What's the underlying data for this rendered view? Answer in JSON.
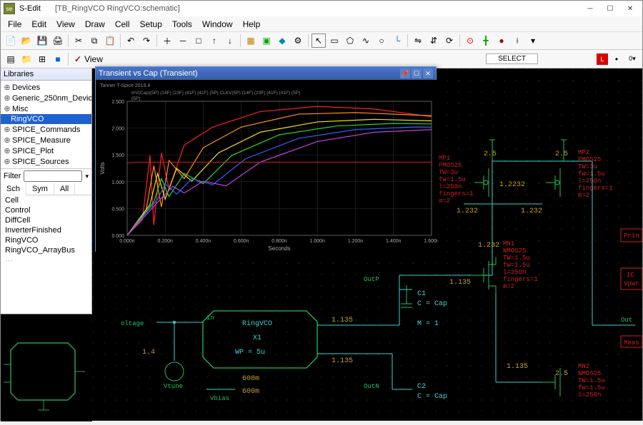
{
  "window": {
    "app": "S-Edit",
    "doc": "[TB_RingVCO RingVCO:schematic]"
  },
  "menus": [
    "File",
    "Edit",
    "View",
    "Draw",
    "Cell",
    "Setup",
    "Tools",
    "Window",
    "Help"
  ],
  "toolbar_select_label": "SELECT",
  "view_check": {
    "label": "View",
    "checked": true
  },
  "libraries": {
    "header": "Libraries",
    "items": [
      {
        "label": "Devices",
        "selected": false
      },
      {
        "label": "Generic_250nm_Devic",
        "selected": false
      },
      {
        "label": "Misc",
        "selected": false
      },
      {
        "label": "RingVCO",
        "selected": true
      },
      {
        "label": "SPICE_Commands",
        "selected": false
      },
      {
        "label": "SPICE_Measure",
        "selected": false
      },
      {
        "label": "SPICE_Plot",
        "selected": false
      },
      {
        "label": "SPICE_Sources",
        "selected": false
      }
    ]
  },
  "filter": {
    "label": "Filter",
    "value": ""
  },
  "cell_tabs": [
    "Sch",
    "Sym",
    "All"
  ],
  "cell_tab_active": 0,
  "cells": [
    "Cell",
    "Control",
    "DiffCell",
    "InverterFinished",
    "RingVCO",
    "RingVCO_ArrayBus"
  ],
  "plot": {
    "title": "Transient vs Cap (Transient)",
    "subtitle": "Tanner T-Spice 2019.4",
    "legend_bits": [
      "InV(Cap)(5P)",
      "(14F)",
      "(23F)",
      "(41F)",
      "(41F)",
      "(5P)",
      "CLKV(5P)",
      "(14F)",
      "(23F)",
      "(41F)",
      "(41F)",
      "(5P)"
    ],
    "x_label": "Seconds",
    "y_label": "Volts",
    "x_ticks": [
      "0.000n",
      "0.200n",
      "0.400n",
      "0.600n",
      "0.800n",
      "1.000n",
      "1.200n",
      "1.400n",
      "1.600n"
    ],
    "y_ticks": [
      "0.000",
      "0.500",
      "1.000",
      "1.500",
      "2.000",
      "2.500"
    ],
    "xlim": [
      0,
      1.6
    ],
    "ylim": [
      0,
      2.6
    ],
    "bg": "#000000",
    "grid_color": "#333333",
    "axis_color": "#888888",
    "tick_fontsize": 7,
    "series": [
      {
        "color": "#ff2020",
        "width": 1.2,
        "pts": [
          [
            0.0,
            0.0
          ],
          [
            0.08,
            0.3
          ],
          [
            0.12,
            1.55
          ],
          [
            0.14,
            0.2
          ],
          [
            0.18,
            1.6
          ],
          [
            0.22,
            0.9
          ],
          [
            0.3,
            1.75
          ],
          [
            0.45,
            2.1
          ],
          [
            0.7,
            2.4
          ],
          [
            1.0,
            2.5
          ],
          [
            1.3,
            2.45
          ],
          [
            1.6,
            2.3
          ]
        ]
      },
      {
        "color": "#ff9020",
        "width": 1.2,
        "pts": [
          [
            0.0,
            0.0
          ],
          [
            0.1,
            0.5
          ],
          [
            0.14,
            1.35
          ],
          [
            0.18,
            0.55
          ],
          [
            0.22,
            1.45
          ],
          [
            0.3,
            1.1
          ],
          [
            0.4,
            1.7
          ],
          [
            0.6,
            2.1
          ],
          [
            0.9,
            2.35
          ],
          [
            1.2,
            2.38
          ],
          [
            1.6,
            2.32
          ]
        ]
      },
      {
        "color": "#f0e020",
        "width": 1.2,
        "pts": [
          [
            0.0,
            0.0
          ],
          [
            0.12,
            0.6
          ],
          [
            0.16,
            1.2
          ],
          [
            0.2,
            0.7
          ],
          [
            0.26,
            1.3
          ],
          [
            0.34,
            1.05
          ],
          [
            0.48,
            1.6
          ],
          [
            0.7,
            2.0
          ],
          [
            1.0,
            2.2
          ],
          [
            1.3,
            2.25
          ],
          [
            1.6,
            2.22
          ]
        ]
      },
      {
        "color": "#30d030",
        "width": 1.2,
        "pts": [
          [
            0.0,
            0.0
          ],
          [
            0.14,
            0.65
          ],
          [
            0.18,
            1.1
          ],
          [
            0.22,
            0.75
          ],
          [
            0.3,
            1.2
          ],
          [
            0.4,
            1.0
          ],
          [
            0.55,
            1.55
          ],
          [
            0.8,
            1.95
          ],
          [
            1.1,
            2.12
          ],
          [
            1.4,
            2.17
          ],
          [
            1.6,
            2.16
          ]
        ]
      },
      {
        "color": "#3060ff",
        "width": 1.2,
        "pts": [
          [
            0.0,
            0.0
          ],
          [
            0.16,
            0.7
          ],
          [
            0.2,
            1.0
          ],
          [
            0.26,
            0.8
          ],
          [
            0.34,
            1.1
          ],
          [
            0.45,
            0.98
          ],
          [
            0.62,
            1.48
          ],
          [
            0.9,
            1.88
          ],
          [
            1.2,
            2.05
          ],
          [
            1.5,
            2.1
          ],
          [
            1.6,
            2.1
          ]
        ]
      },
      {
        "color": "#c040e0",
        "width": 1.2,
        "pts": [
          [
            0.0,
            0.0
          ],
          [
            0.18,
            0.72
          ],
          [
            0.24,
            0.95
          ],
          [
            0.3,
            0.82
          ],
          [
            0.4,
            1.05
          ],
          [
            0.52,
            0.96
          ],
          [
            0.7,
            1.42
          ],
          [
            1.0,
            1.82
          ],
          [
            1.3,
            2.0
          ],
          [
            1.6,
            2.05
          ]
        ]
      },
      {
        "color": "#d02020",
        "width": 1.0,
        "pts": [
          [
            0.0,
            1.4
          ],
          [
            0.05,
            1.42
          ],
          [
            1.6,
            1.42
          ]
        ]
      }
    ]
  },
  "schematic": {
    "grid_color": "#103010",
    "wire_color": "#40d0d0",
    "device_color": "#20c060",
    "text_red": "#d02020",
    "text_gold": "#c0a020",
    "labels": {
      "ringvco": "RingVCO",
      "x1": "X1",
      "wp": "WP = 5u",
      "in": "In",
      "oltage": "oltage",
      "vtune": "Vtune",
      "vbias": "Vbias",
      "val_14": "1.4",
      "val_600m_a": "600m",
      "val_600m_b": "600m",
      "outp": "OutP",
      "outn": "OutN",
      "c1": "C1",
      "c2": "C2",
      "ccap1": "C = Cap",
      "ccap2": "C = Cap",
      "m1": "M = 1",
      "v1135a": "1.135",
      "v1135b": "1.135",
      "v1135c": "1.135",
      "v1135d": "1.135",
      "v1232a": "1.232",
      "v1232b": "1.232",
      "v1232c": "1.232",
      "v1232d": "1.2232",
      "v25a": "2.5",
      "v25b": "2.5",
      "v25c": "2.5",
      "mp1": "MP1",
      "mp2": "MP2",
      "mn1": "MN1",
      "mn2": "MN2",
      "pmos": "PMOS25",
      "nmos": "NMOS25",
      "tw3": "TW=3u",
      "tw15": "TW=1.5u",
      "fw15": "fw=1.5u",
      "l250": "l=250n",
      "fing": "fingers=1",
      "m2": "m=2",
      "prin": "Prin",
      "ic": "IC",
      "vpwr": "Vpwr",
      "out": "Out",
      "meas": "Meas"
    }
  },
  "colors": {
    "titlebar_bg": "#ffffff",
    "menubar_bg": "#f7f7f7",
    "accent": "#1e62d0",
    "canvas_bg": "#000000"
  }
}
